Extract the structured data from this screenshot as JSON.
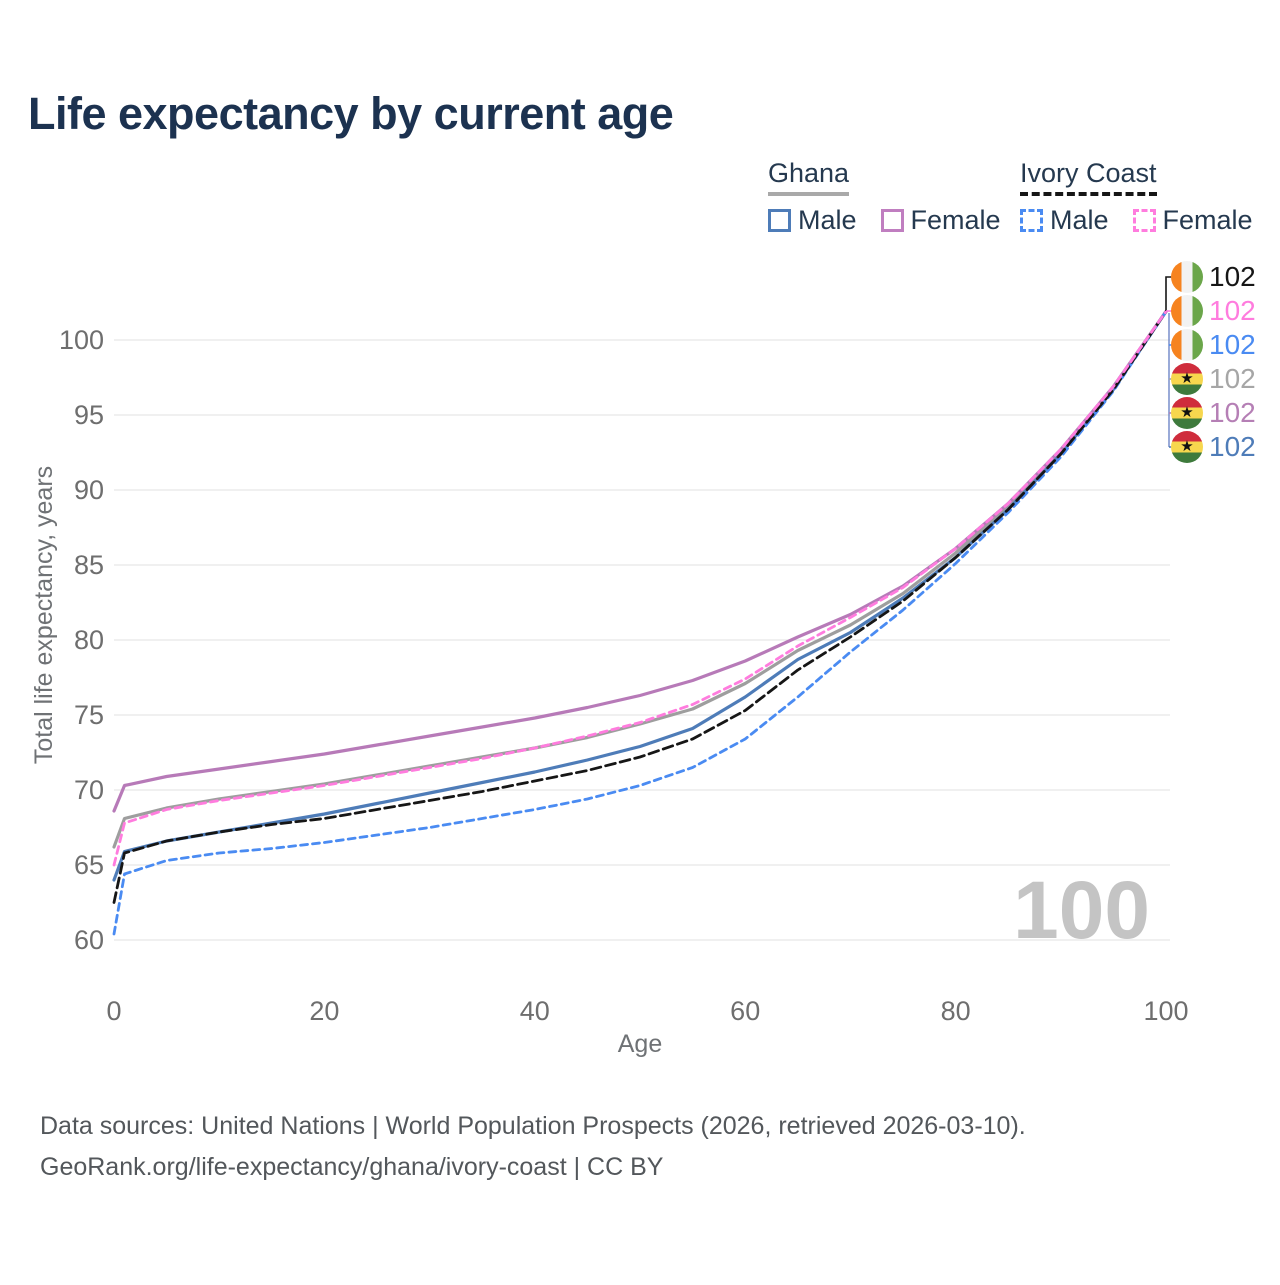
{
  "title": "Life expectancy by current age",
  "legend": {
    "groups": [
      {
        "label": "Ghana",
        "line_style": "solid",
        "line_color": "#A9A9A9",
        "items": [
          {
            "label": "Male",
            "color": "#4E7CB8",
            "style": "solid"
          },
          {
            "label": "Female",
            "color": "#C07EC0",
            "style": "solid"
          }
        ]
      },
      {
        "label": "Ivory Coast",
        "line_style": "dashed",
        "line_color": "#161616",
        "items": [
          {
            "label": "Male",
            "color": "#4A8BF2",
            "style": "dashed"
          },
          {
            "label": "Female",
            "color": "#FF7CDE",
            "style": "dashed"
          }
        ]
      }
    ]
  },
  "flags": {
    "ivory_coast": {
      "direction": "vertical",
      "stripes": [
        "#F6831F",
        "#F2F2F2",
        "#6BA64A"
      ]
    },
    "ghana": {
      "direction": "horizontal",
      "stripes": [
        "#CF2C3C",
        "#F7D74E",
        "#3E7A3C"
      ],
      "star": "#111111"
    }
  },
  "chart_data": {
    "type": "line",
    "title": "Life expectancy by current age",
    "xlabel": "Age",
    "ylabel": "Total life expectancy, years",
    "watermark": "100",
    "x_ticks": [
      0,
      20,
      40,
      60,
      80,
      100
    ],
    "y_ticks": [
      60,
      65,
      70,
      75,
      80,
      85,
      90,
      95,
      100
    ],
    "xlim": [
      0,
      100
    ],
    "ylim": [
      59.5,
      102.5
    ],
    "grid": "horizontal",
    "legend_position": "top-right",
    "ages": [
      0,
      1,
      5,
      10,
      15,
      20,
      25,
      30,
      35,
      40,
      45,
      50,
      55,
      60,
      65,
      70,
      75,
      80,
      85,
      90,
      95,
      100
    ],
    "series": [
      {
        "id": "ghana-both",
        "name": "Ghana",
        "sex": "Both",
        "color": "#9E9E9E",
        "dashed": false,
        "values": [
          66.2,
          68.1,
          68.8,
          69.4,
          69.9,
          70.4,
          71.0,
          71.6,
          72.2,
          72.8,
          73.5,
          74.4,
          75.4,
          77.1,
          79.3,
          81.0,
          83.1,
          85.8,
          88.9,
          92.5,
          96.8,
          101.9
        ]
      },
      {
        "id": "ghana-male",
        "name": "Ghana Male",
        "sex": "Male",
        "color": "#4E7CB8",
        "dashed": false,
        "values": [
          64.0,
          65.9,
          66.6,
          67.2,
          67.8,
          68.4,
          69.1,
          69.8,
          70.5,
          71.2,
          72.0,
          72.9,
          74.1,
          76.2,
          78.7,
          80.5,
          82.8,
          85.5,
          88.7,
          92.4,
          96.7,
          101.9
        ]
      },
      {
        "id": "ghana-female",
        "name": "Ghana Female",
        "sex": "Female",
        "color": "#B77AB8",
        "dashed": false,
        "values": [
          68.6,
          70.3,
          70.9,
          71.4,
          71.9,
          72.4,
          73.0,
          73.6,
          74.2,
          74.8,
          75.5,
          76.3,
          77.3,
          78.6,
          80.2,
          81.7,
          83.6,
          86.1,
          89.1,
          92.7,
          96.9,
          101.9
        ]
      },
      {
        "id": "ivorycoast-male",
        "name": "Ivory Coast Male",
        "sex": "Male",
        "color": "#4A8BF2",
        "dashed": true,
        "dash_pattern": "7 5",
        "values": [
          60.4,
          64.4,
          65.3,
          65.8,
          66.1,
          66.5,
          67.0,
          67.5,
          68.1,
          68.7,
          69.4,
          70.3,
          71.5,
          73.4,
          76.2,
          79.2,
          82.0,
          85.1,
          88.5,
          92.2,
          96.6,
          101.9
        ]
      },
      {
        "id": "ivorycoast-both",
        "name": "Ivory Coast",
        "sex": "Both",
        "color": "#161616",
        "dashed": true,
        "dash_pattern": "10 5",
        "values": [
          62.5,
          65.8,
          66.6,
          67.2,
          67.7,
          68.1,
          68.7,
          69.3,
          69.9,
          70.6,
          71.3,
          72.2,
          73.4,
          75.3,
          78.0,
          80.2,
          82.6,
          85.5,
          88.7,
          92.4,
          96.7,
          101.9
        ]
      },
      {
        "id": "ivorycoast-female",
        "name": "Ivory Coast Female",
        "sex": "Female",
        "color": "#FF7CDE",
        "dashed": true,
        "dash_pattern": "7 5",
        "values": [
          65.0,
          67.8,
          68.7,
          69.3,
          69.8,
          70.3,
          70.9,
          71.5,
          72.1,
          72.8,
          73.6,
          74.5,
          75.7,
          77.4,
          79.6,
          81.5,
          83.5,
          86.1,
          89.1,
          92.7,
          96.9,
          101.9
        ]
      }
    ],
    "end_labels": [
      {
        "flag": "ivory_coast",
        "series": "ivorycoast-both",
        "color": "#161616",
        "value": "102"
      },
      {
        "flag": "ivory_coast",
        "series": "ivorycoast-female",
        "color": "#FF7CDE",
        "value": "102"
      },
      {
        "flag": "ivory_coast",
        "series": "ivorycoast-male",
        "color": "#4A8BF2",
        "value": "102"
      },
      {
        "flag": "ghana",
        "series": "ghana-both",
        "color": "#A6A6A6",
        "value": "102"
      },
      {
        "flag": "ghana",
        "series": "ghana-female",
        "color": "#B57FB5",
        "value": "102"
      },
      {
        "flag": "ghana",
        "series": "ghana-male",
        "color": "#4E7CB8",
        "value": "102"
      }
    ]
  },
  "footer": {
    "line1": "Data sources: United Nations | World Population Prospects (2026, retrieved 2026-03-10).",
    "line2": "GeoRank.org/life-expectancy/ghana/ivory-coast | CC BY"
  }
}
